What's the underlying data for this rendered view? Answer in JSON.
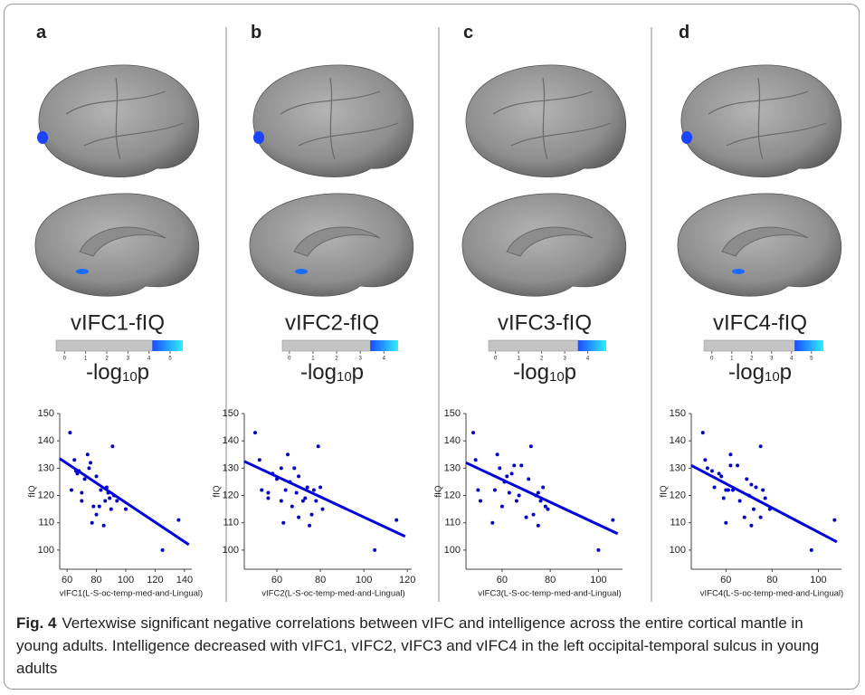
{
  "panels": [
    {
      "letter": "a",
      "title": "vIFC1-fIQ",
      "colorbar": {
        "lim": [
          -0.4,
          5.6
        ],
        "ticks": [
          0,
          1,
          2,
          3,
          4,
          5
        ]
      },
      "colorbar_label": {
        "prefix": "-log",
        "sub": "10",
        "suffix": "p"
      }
    },
    {
      "letter": "b",
      "title": "vIFC2-fIQ",
      "colorbar": {
        "lim": [
          -0.3,
          4.6
        ],
        "ticks": [
          0,
          1,
          2,
          3,
          4
        ]
      },
      "colorbar_label": {
        "prefix": "-log",
        "sub": "10",
        "suffix": "p"
      }
    },
    {
      "letter": "c",
      "title": "vIFC3-fIQ",
      "colorbar": {
        "lim": [
          -0.3,
          4.8
        ],
        "ticks": [
          0,
          1,
          2,
          3,
          4
        ]
      },
      "colorbar_label": {
        "prefix": "-log",
        "sub": "10",
        "suffix": "p"
      }
    },
    {
      "letter": "d",
      "title": "vIFC4-fIQ",
      "colorbar": {
        "lim": [
          -0.4,
          5.6
        ],
        "ticks": [
          0,
          1,
          2,
          3,
          4,
          5
        ]
      },
      "colorbar_label": {
        "prefix": "-log",
        "sub": "10",
        "suffix": "p"
      }
    }
  ],
  "chart_data": [
    {
      "type": "scatter",
      "x_label": "vIFC1(L-S-oc-temp-med-and-Lingual)",
      "y_label": "fIQ",
      "xlim": [
        55,
        145
      ],
      "xticks": [
        60,
        80,
        100,
        120,
        140
      ],
      "ylim": [
        93,
        150
      ],
      "yticks": [
        100,
        110,
        120,
        130,
        140,
        150
      ],
      "series": [
        {
          "color": "#0000cc",
          "x": [
            62,
            63,
            65,
            67,
            68,
            70,
            70,
            72,
            74,
            75,
            76,
            77,
            78,
            80,
            80,
            82,
            83,
            85,
            86,
            87,
            88,
            89,
            90,
            91,
            92,
            94,
            100,
            125,
            136,
            66
          ],
          "values": [
            143,
            122,
            133,
            128,
            129,
            121,
            118,
            126,
            135,
            130,
            132,
            110,
            116,
            127,
            113,
            116,
            122,
            109,
            118,
            123,
            121,
            119,
            115,
            138,
            120,
            118,
            115,
            100,
            111,
            129
          ]
        }
      ],
      "fit": {
        "color": "#0000dd",
        "x": [
          55,
          143
        ],
        "values": [
          133.5,
          102
        ]
      }
    },
    {
      "type": "scatter",
      "x_label": "vIFC2(L-S-oc-temp-med-and-Lingual)",
      "y_label": "fIQ",
      "xlim": [
        45,
        122
      ],
      "xticks": [
        60,
        80,
        100,
        120
      ],
      "ylim": [
        93,
        150
      ],
      "yticks": [
        100,
        110,
        120,
        130,
        140,
        150
      ],
      "series": [
        {
          "color": "#0000cc",
          "x": [
            50,
            52,
            53,
            56,
            58,
            60,
            62,
            63,
            64,
            65,
            66,
            67,
            68,
            69,
            70,
            70,
            72,
            73,
            74,
            75,
            76,
            77,
            79,
            80,
            81,
            78,
            105,
            115,
            62,
            56
          ],
          "values": [
            143,
            133,
            122,
            119,
            128,
            126,
            118,
            110,
            122,
            135,
            125,
            116,
            130,
            121,
            112,
            127,
            118,
            119,
            123,
            109,
            113,
            122,
            138,
            123,
            115,
            118,
            100,
            111,
            130,
            121
          ]
        }
      ],
      "fit": {
        "color": "#0000dd",
        "x": [
          45,
          119
        ],
        "values": [
          132.5,
          105
        ]
      }
    },
    {
      "type": "scatter",
      "x_label": "vIFC3(L-S-oc-temp-med-and-Lingual)",
      "y_label": "fIQ",
      "xlim": [
        45,
        110
      ],
      "xticks": [
        60,
        80,
        100
      ],
      "ylim": [
        93,
        150
      ],
      "yticks": [
        100,
        110,
        120,
        130,
        140,
        150
      ],
      "series": [
        {
          "color": "#0000cc",
          "x": [
            48,
            49,
            50,
            51,
            56,
            57,
            58,
            60,
            61,
            62,
            64,
            65,
            66,
            67,
            68,
            70,
            71,
            72,
            73,
            74,
            75,
            75,
            76,
            77,
            78,
            79,
            100,
            106,
            59,
            63
          ],
          "values": [
            143,
            133,
            122,
            118,
            110,
            122,
            135,
            116,
            125,
            127,
            128,
            131,
            118,
            120,
            131,
            112,
            126,
            138,
            113,
            120,
            109,
            121,
            118,
            123,
            116,
            115,
            100,
            111,
            130,
            121
          ]
        }
      ],
      "fit": {
        "color": "#0000dd",
        "x": [
          45,
          108
        ],
        "values": [
          132,
          106
        ]
      }
    },
    {
      "type": "scatter",
      "x_label": "vIFC4(L-S-oc-temp-med-and-Lingual)",
      "y_label": "fIQ",
      "xlim": [
        45,
        110
      ],
      "xticks": [
        60,
        80,
        100
      ],
      "ylim": [
        93,
        150
      ],
      "yticks": [
        100,
        110,
        120,
        130,
        140,
        150
      ],
      "series": [
        {
          "color": "#0000cc",
          "x": [
            50,
            51,
            52,
            55,
            57,
            58,
            59,
            60,
            61,
            62,
            62,
            63,
            65,
            66,
            68,
            69,
            70,
            71,
            71,
            72,
            73,
            75,
            75,
            76,
            77,
            79,
            97,
            107,
            54,
            60
          ],
          "values": [
            143,
            133,
            130,
            123,
            128,
            127,
            119,
            110,
            122,
            135,
            131,
            122,
            131,
            118,
            112,
            126,
            120,
            124,
            109,
            115,
            123,
            138,
            112,
            122,
            119,
            115,
            100,
            111,
            129,
            122
          ]
        }
      ],
      "fit": {
        "color": "#0000dd",
        "x": [
          45,
          108
        ],
        "values": [
          131,
          103
        ]
      }
    }
  ],
  "caption": {
    "label": "Fig. 4",
    "text": "Vertexwise significant negative correlations between vIFC and intelligence across the entire cortical mantle in young adults. Intelligence decreased with vIFC1, vIFC2, vIFC3 and vIFC4 in the left occipital-temporal sulcus in young adults"
  }
}
